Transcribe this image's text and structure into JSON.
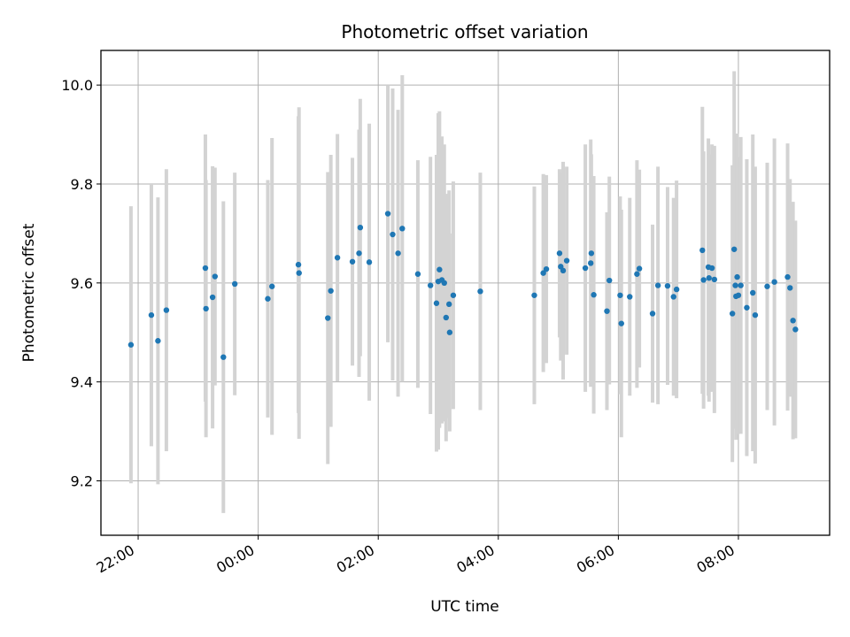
{
  "chart_data": {
    "type": "scatter",
    "title": "Photometric offset variation",
    "xlabel": "UTC time",
    "ylabel": "Photometric offset",
    "x_unit": "hours",
    "x_ticks": [
      {
        "value": 22,
        "label": "22:00"
      },
      {
        "value": 24,
        "label": "00:00"
      },
      {
        "value": 26,
        "label": "02:00"
      },
      {
        "value": 28,
        "label": "04:00"
      },
      {
        "value": 30,
        "label": "06:00"
      },
      {
        "value": 32,
        "label": "08:00"
      }
    ],
    "y_ticks": [
      {
        "value": 9.2,
        "label": "9.2"
      },
      {
        "value": 9.4,
        "label": "9.4"
      },
      {
        "value": 9.6,
        "label": "9.6"
      },
      {
        "value": 9.8,
        "label": "9.8"
      },
      {
        "value": 10.0,
        "label": "10.0"
      }
    ],
    "xlim": [
      21.38,
      33.52
    ],
    "ylim": [
      9.09,
      10.07
    ],
    "grid": true,
    "point_color": "#1f77b4",
    "errorbar_color": "#d3d3d3",
    "points": [
      [
        21.88,
        9.475,
        0.28
      ],
      [
        22.22,
        9.535,
        0.265
      ],
      [
        22.33,
        9.483,
        0.29
      ],
      [
        22.47,
        9.545,
        0.285
      ],
      [
        23.12,
        9.63,
        0.27
      ],
      [
        23.13,
        9.548,
        0.26
      ],
      [
        23.24,
        9.571,
        0.265
      ],
      [
        23.28,
        9.613,
        0.22
      ],
      [
        23.42,
        9.45,
        0.315
      ],
      [
        23.61,
        9.598,
        0.225
      ],
      [
        24.16,
        9.568,
        0.24
      ],
      [
        24.23,
        9.593,
        0.3
      ],
      [
        24.67,
        9.637,
        0.3
      ],
      [
        24.68,
        9.62,
        0.335
      ],
      [
        25.16,
        9.529,
        0.295
      ],
      [
        25.21,
        9.584,
        0.275
      ],
      [
        25.32,
        9.651,
        0.25
      ],
      [
        25.57,
        9.643,
        0.21
      ],
      [
        25.68,
        9.66,
        0.25
      ],
      [
        25.7,
        9.712,
        0.26
      ],
      [
        25.85,
        9.642,
        0.28
      ],
      [
        26.16,
        9.74,
        0.26
      ],
      [
        26.24,
        9.698,
        0.295
      ],
      [
        26.33,
        9.66,
        0.29
      ],
      [
        26.4,
        9.71,
        0.31
      ],
      [
        26.66,
        9.618,
        0.23
      ],
      [
        26.87,
        9.595,
        0.26
      ],
      [
        26.97,
        9.559,
        0.3
      ],
      [
        27.0,
        9.603,
        0.34
      ],
      [
        27.02,
        9.627,
        0.32
      ],
      [
        27.06,
        9.606,
        0.29
      ],
      [
        27.1,
        9.6,
        0.28
      ],
      [
        27.13,
        9.53,
        0.25
      ],
      [
        27.18,
        9.557,
        0.23
      ],
      [
        27.19,
        9.5,
        0.2
      ],
      [
        27.25,
        9.575,
        0.23
      ],
      [
        27.7,
        9.583,
        0.24
      ],
      [
        28.6,
        9.575,
        0.22
      ],
      [
        28.75,
        9.62,
        0.2
      ],
      [
        28.8,
        9.628,
        0.19
      ],
      [
        29.02,
        9.66,
        0.17
      ],
      [
        29.04,
        9.633,
        0.19
      ],
      [
        29.08,
        9.625,
        0.22
      ],
      [
        29.14,
        9.645,
        0.19
      ],
      [
        29.45,
        9.63,
        0.25
      ],
      [
        29.54,
        9.64,
        0.25
      ],
      [
        29.55,
        9.66,
        0.2
      ],
      [
        29.59,
        9.576,
        0.24
      ],
      [
        29.81,
        9.543,
        0.2
      ],
      [
        29.85,
        9.605,
        0.21
      ],
      [
        30.03,
        9.575,
        0.2
      ],
      [
        30.05,
        9.518,
        0.23
      ],
      [
        30.19,
        9.572,
        0.2
      ],
      [
        30.31,
        9.618,
        0.23
      ],
      [
        30.35,
        9.629,
        0.2
      ],
      [
        30.57,
        9.538,
        0.18
      ],
      [
        30.66,
        9.595,
        0.24
      ],
      [
        30.82,
        9.594,
        0.2
      ],
      [
        30.92,
        9.572,
        0.2
      ],
      [
        30.97,
        9.587,
        0.22
      ],
      [
        31.4,
        9.666,
        0.29
      ],
      [
        31.42,
        9.606,
        0.26
      ],
      [
        31.5,
        9.632,
        0.26
      ],
      [
        31.51,
        9.61,
        0.25
      ],
      [
        31.56,
        9.63,
        0.25
      ],
      [
        31.6,
        9.607,
        0.27
      ],
      [
        31.9,
        9.538,
        0.3
      ],
      [
        31.93,
        9.668,
        0.36
      ],
      [
        31.96,
        9.573,
        0.29
      ],
      [
        31.95,
        9.595,
        0.29
      ],
      [
        31.98,
        9.612,
        0.29
      ],
      [
        32.0,
        9.575,
        0.28
      ],
      [
        32.04,
        9.595,
        0.3
      ],
      [
        32.14,
        9.55,
        0.3
      ],
      [
        32.24,
        9.58,
        0.32
      ],
      [
        32.28,
        9.535,
        0.3
      ],
      [
        32.48,
        9.593,
        0.25
      ],
      [
        32.6,
        9.602,
        0.29
      ],
      [
        32.82,
        9.612,
        0.27
      ],
      [
        32.86,
        9.59,
        0.22
      ],
      [
        32.91,
        9.524,
        0.24
      ],
      [
        32.95,
        9.506,
        0.22
      ]
    ]
  }
}
